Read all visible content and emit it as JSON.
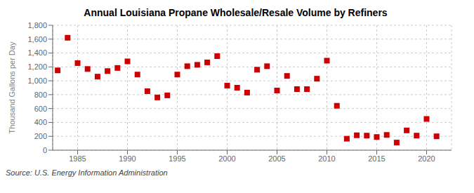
{
  "chart_data": {
    "type": "scatter",
    "title": "Annual Louisiana Propane Wholesale/Resale Volume by Refiners",
    "y_label": "Thousand Gallons per Day",
    "annotations": [
      "Source: U.S. Energy Information Administration"
    ],
    "x": [
      1983,
      1984,
      1985,
      1986,
      1987,
      1988,
      1989,
      1990,
      1991,
      1992,
      1993,
      1994,
      1995,
      1996,
      1997,
      1998,
      1999,
      2000,
      2001,
      2002,
      2003,
      2004,
      2005,
      2006,
      2007,
      2008,
      2009,
      2010,
      2011,
      2012,
      2013,
      2014,
      2015,
      2016,
      2017,
      2018,
      2019,
      2020,
      2021
    ],
    "values": [
      1150,
      1620,
      1255,
      1170,
      1060,
      1140,
      1185,
      1280,
      1090,
      850,
      760,
      790,
      1090,
      1210,
      1230,
      1265,
      1355,
      930,
      900,
      830,
      1160,
      1210,
      860,
      1070,
      880,
      880,
      1030,
      1290,
      640,
      165,
      215,
      210,
      190,
      220,
      110,
      285,
      210,
      450,
      200
    ],
    "color": "#cc0000",
    "marker": "square",
    "xlim": [
      1982.5,
      2022.5
    ],
    "xticks": [
      1985,
      1990,
      1995,
      2000,
      2005,
      2010,
      2015,
      2020
    ],
    "ylim": [
      0,
      1800
    ],
    "yticks": [
      0,
      200,
      400,
      600,
      800,
      {
        "value": 1000,
        "label": "1,000"
      },
      {
        "value": 1200,
        "label": "1,200"
      },
      {
        "value": 1400,
        "label": "1,400"
      },
      {
        "value": 1600,
        "label": "1,600"
      },
      {
        "value": 1800,
        "label": "1,800"
      }
    ],
    "grid": true
  }
}
